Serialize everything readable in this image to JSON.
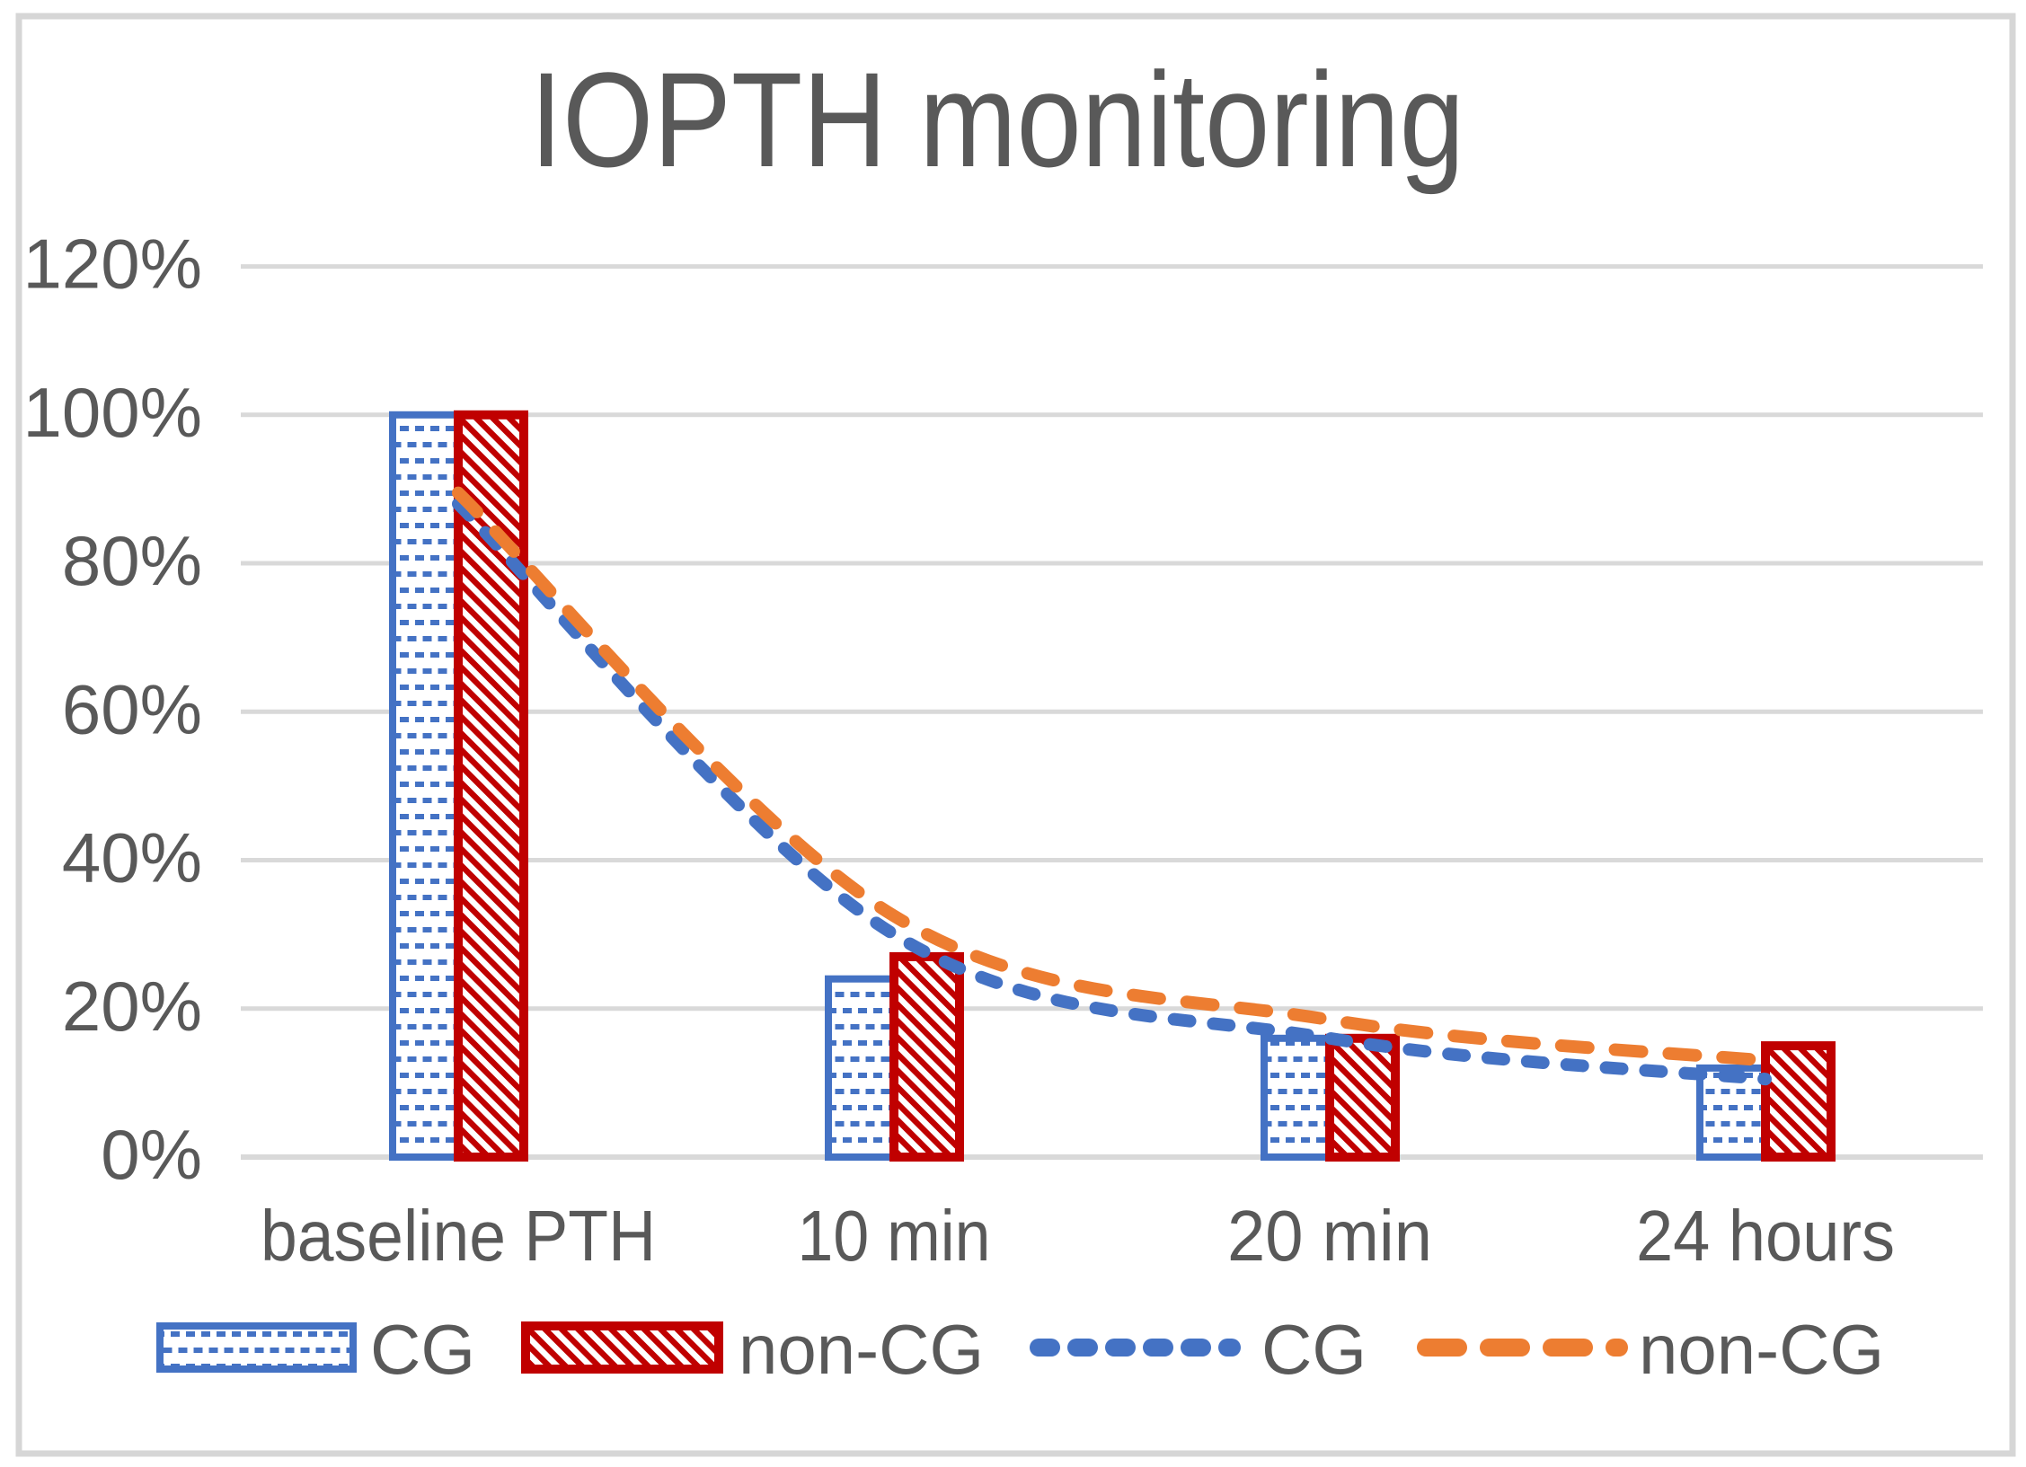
{
  "chart_data": {
    "type": "combo-bar-line",
    "title": "IOPTH monitoring",
    "categories": [
      "baseline PTH",
      "10 min",
      "20 min",
      "24 hours"
    ],
    "y_axis": {
      "tick_labels": [
        "120%",
        "100%",
        "80%",
        "60%",
        "40%",
        "20%",
        "0%"
      ],
      "tick_values": [
        120,
        100,
        80,
        60,
        40,
        20,
        0
      ],
      "ylim": [
        0,
        120
      ],
      "unit": "percent"
    },
    "bar_series": [
      {
        "name": "CG",
        "values": [
          100,
          24,
          16,
          12
        ],
        "pattern": "blue-dots",
        "color": "#4472C4"
      },
      {
        "name": "non-CG",
        "values": [
          100,
          27,
          16,
          15
        ],
        "pattern": "red-diagonal-hatch",
        "color": "#C00000"
      }
    ],
    "line_series": [
      {
        "name": "CG",
        "values": [
          88,
          30,
          16,
          10.5
        ],
        "color": "#4472C4",
        "dash_style": "short-dash"
      },
      {
        "name": "non-CG",
        "values": [
          89.5,
          32.5,
          18.5,
          13
        ],
        "color": "#ED7D31",
        "dash_style": "long-dash"
      }
    ],
    "legend": {
      "position": "bottom",
      "entries": [
        {
          "label": "CG",
          "swatch": "bar-blue-dots"
        },
        {
          "label": "non-CG",
          "swatch": "bar-red-hatch"
        },
        {
          "label": "CG",
          "swatch": "line-blue-dashed"
        },
        {
          "label": "non-CG",
          "swatch": "line-orange-dashed"
        }
      ]
    },
    "grid": "horizontal-on",
    "colors": {
      "cg_blue": "#4472C4",
      "noncg_orange": "#ED7D31",
      "noncg_red": "#C00000",
      "text_gray": "#595959",
      "gridline_gray": "#D9D9D9",
      "figure_border_gray": "#D6D6D6",
      "background": "#FFFFFF"
    }
  }
}
